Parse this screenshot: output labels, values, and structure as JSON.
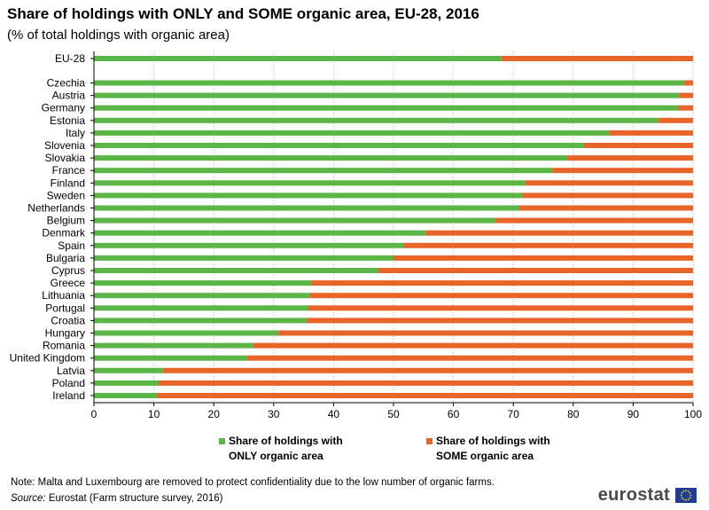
{
  "header": {
    "title": "Share of holdings with ONLY and SOME organic area, EU-28, 2016",
    "subtitle": "(% of total holdings with organic area)"
  },
  "chart_data": {
    "type": "bar",
    "orientation": "horizontal",
    "stacked": true,
    "categories": [
      "EU-28",
      "Czechia",
      "Austria",
      "Germany",
      "Estonia",
      "Italy",
      "Slovenia",
      "Slovakia",
      "France",
      "Finland",
      "Sweden",
      "Netherlands",
      "Belgium",
      "Denmark",
      "Spain",
      "Bulgaria",
      "Cyprus",
      "Greece",
      "Lithuania",
      "Portugal",
      "Croatia",
      "Hungary",
      "Romania",
      "United Kingdom",
      "Latvia",
      "Poland",
      "Ireland"
    ],
    "series": [
      {
        "name": "Share of holdings with ONLY organic area",
        "color": "#5cb547",
        "values": [
          68,
          98.5,
          97.7,
          97.5,
          94.2,
          86,
          81.8,
          79,
          76.5,
          72,
          71.5,
          71,
          67,
          55.3,
          51.7,
          50,
          47.5,
          36.3,
          36,
          35.8,
          35.5,
          30.8,
          26.6,
          25.6,
          11.5,
          10.8,
          10.5
        ]
      },
      {
        "name": "Share of holdings with SOME organic area",
        "color": "#e8652a",
        "values": [
          32,
          1.5,
          2.3,
          2.5,
          5.8,
          14,
          18.2,
          21,
          23.5,
          28,
          28.5,
          29,
          33,
          44.7,
          48.3,
          50,
          52.5,
          63.7,
          64,
          64.2,
          64.5,
          69.2,
          73.4,
          74.4,
          88.5,
          89.2,
          89.5
        ]
      }
    ],
    "xlim": [
      0,
      100
    ],
    "xticks": [
      "0",
      "10",
      "20",
      "30",
      "40",
      "50",
      "60",
      "70",
      "80",
      "90",
      "100"
    ],
    "grid": true,
    "legend_position": "bottom"
  },
  "legend": {
    "only_label": "Share of holdings with ONLY organic area",
    "some_label": "Share of holdings with SOME organic area"
  },
  "footer": {
    "note": "Note: Malta and Luxembourg  are removed to protect confidentiality  due to the low number of organic farms.",
    "source_label": "Source:",
    "source_text": " Eurostat  (Farm structure survey, 2016)",
    "logo_text": "eurostat"
  }
}
